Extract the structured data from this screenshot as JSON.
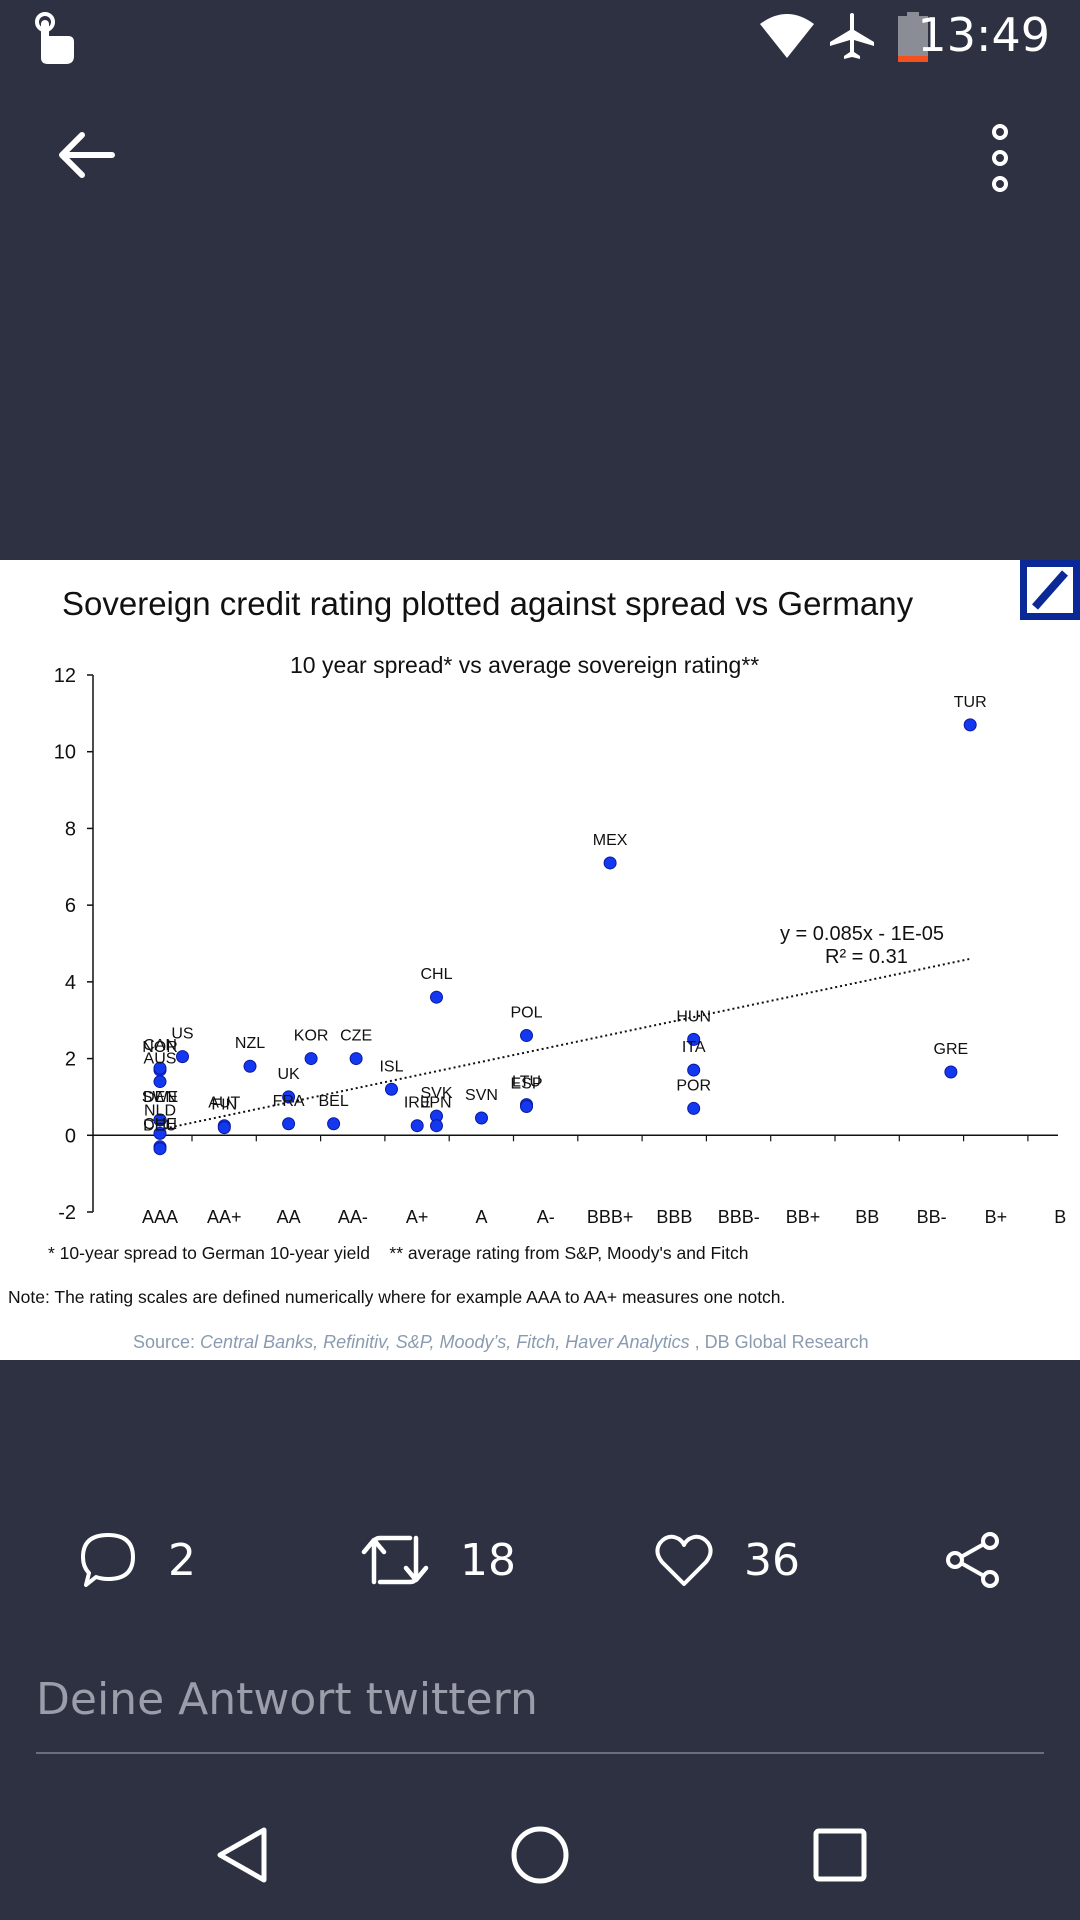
{
  "status_bar": {
    "time": "13:49"
  },
  "post": {
    "image": {
      "title": "Sovereign credit rating plotted against spread vs Germany",
      "footnote": "* 10-year spread to German 10-year yield    ** average rating from S&P, Moody's and Fitch",
      "note": "Note: The rating scales are defined numerically where for example AAA to AA+ measures one notch.",
      "source_prefix": "Source: ",
      "source_italic": "Central Banks, Refinitiv, S&P, Moody’s, Fitch, Haver Analytics",
      "source_suffix": " , DB Global Research"
    }
  },
  "actions": {
    "replies": "2",
    "retweets": "18",
    "likes": "36"
  },
  "reply": {
    "placeholder": "Deine Antwort twittern"
  },
  "chart_data": {
    "type": "scatter",
    "subtitle": "10 year spread*  vs average sovereign rating**",
    "ylim": [
      -2,
      12
    ],
    "yticks": [
      "12",
      "10",
      "8",
      "6",
      "4",
      "2",
      "0",
      "-2"
    ],
    "x_categories": [
      "AAA",
      "AA+",
      "AA",
      "AA-",
      "A+",
      "A",
      "A-",
      "BBB+",
      "BBB",
      "BBB-",
      "BB+",
      "BB",
      "BB-",
      "B+",
      "B"
    ],
    "trendline": {
      "equation": "y = 0.085x - 1E-05",
      "r2": "R² = 0.31"
    },
    "points": [
      {
        "label": "TUR",
        "x": 13.6,
        "y": 10.7
      },
      {
        "label": "MEX",
        "x": 8.0,
        "y": 7.1
      },
      {
        "label": "CHL",
        "x": 5.3,
        "y": 3.6
      },
      {
        "label": "POL",
        "x": 6.7,
        "y": 2.6
      },
      {
        "label": "HUN",
        "x": 9.3,
        "y": 2.5
      },
      {
        "label": "ITA",
        "x": 9.3,
        "y": 1.7
      },
      {
        "label": "POR",
        "x": 9.3,
        "y": 0.7
      },
      {
        "label": "GRE",
        "x": 13.3,
        "y": 1.65
      },
      {
        "label": "NOR",
        "x": 1.0,
        "y": 1.7
      },
      {
        "label": "US",
        "x": 1.35,
        "y": 2.05
      },
      {
        "label": "CAN",
        "x": 1.0,
        "y": 1.75
      },
      {
        "label": "AUS",
        "x": 1.0,
        "y": 1.4
      },
      {
        "label": "NZL",
        "x": 2.4,
        "y": 1.8
      },
      {
        "label": "KOR",
        "x": 3.35,
        "y": 2.0
      },
      {
        "label": "CZE",
        "x": 4.05,
        "y": 2.0
      },
      {
        "label": "UK",
        "x": 3.0,
        "y": 1.0
      },
      {
        "label": "ISL",
        "x": 4.6,
        "y": 1.2
      },
      {
        "label": "SVK",
        "x": 5.3,
        "y": 0.5
      },
      {
        "label": "SVN",
        "x": 6.0,
        "y": 0.45
      },
      {
        "label": "LTU",
        "x": 6.7,
        "y": 0.8
      },
      {
        "label": "ESP",
        "x": 6.7,
        "y": 0.75
      },
      {
        "label": "DEN",
        "x": 1.0,
        "y": 0.4
      },
      {
        "label": "SWE",
        "x": 1.0,
        "y": 0.4
      },
      {
        "label": "AUT",
        "x": 2.0,
        "y": 0.25
      },
      {
        "label": "FRA",
        "x": 3.0,
        "y": 0.3
      },
      {
        "label": "BEL",
        "x": 3.7,
        "y": 0.3
      },
      {
        "label": "IRE",
        "x": 5.0,
        "y": 0.25
      },
      {
        "label": "JPN",
        "x": 5.3,
        "y": 0.25
      },
      {
        "label": "CHE",
        "x": 1.0,
        "y": -0.3
      },
      {
        "label": "NLD",
        "x": 1.0,
        "y": 0.05
      },
      {
        "label": "FIN",
        "x": 2.0,
        "y": 0.2
      },
      {
        "label": "DEU",
        "x": 1.0,
        "y": -0.35
      }
    ]
  }
}
